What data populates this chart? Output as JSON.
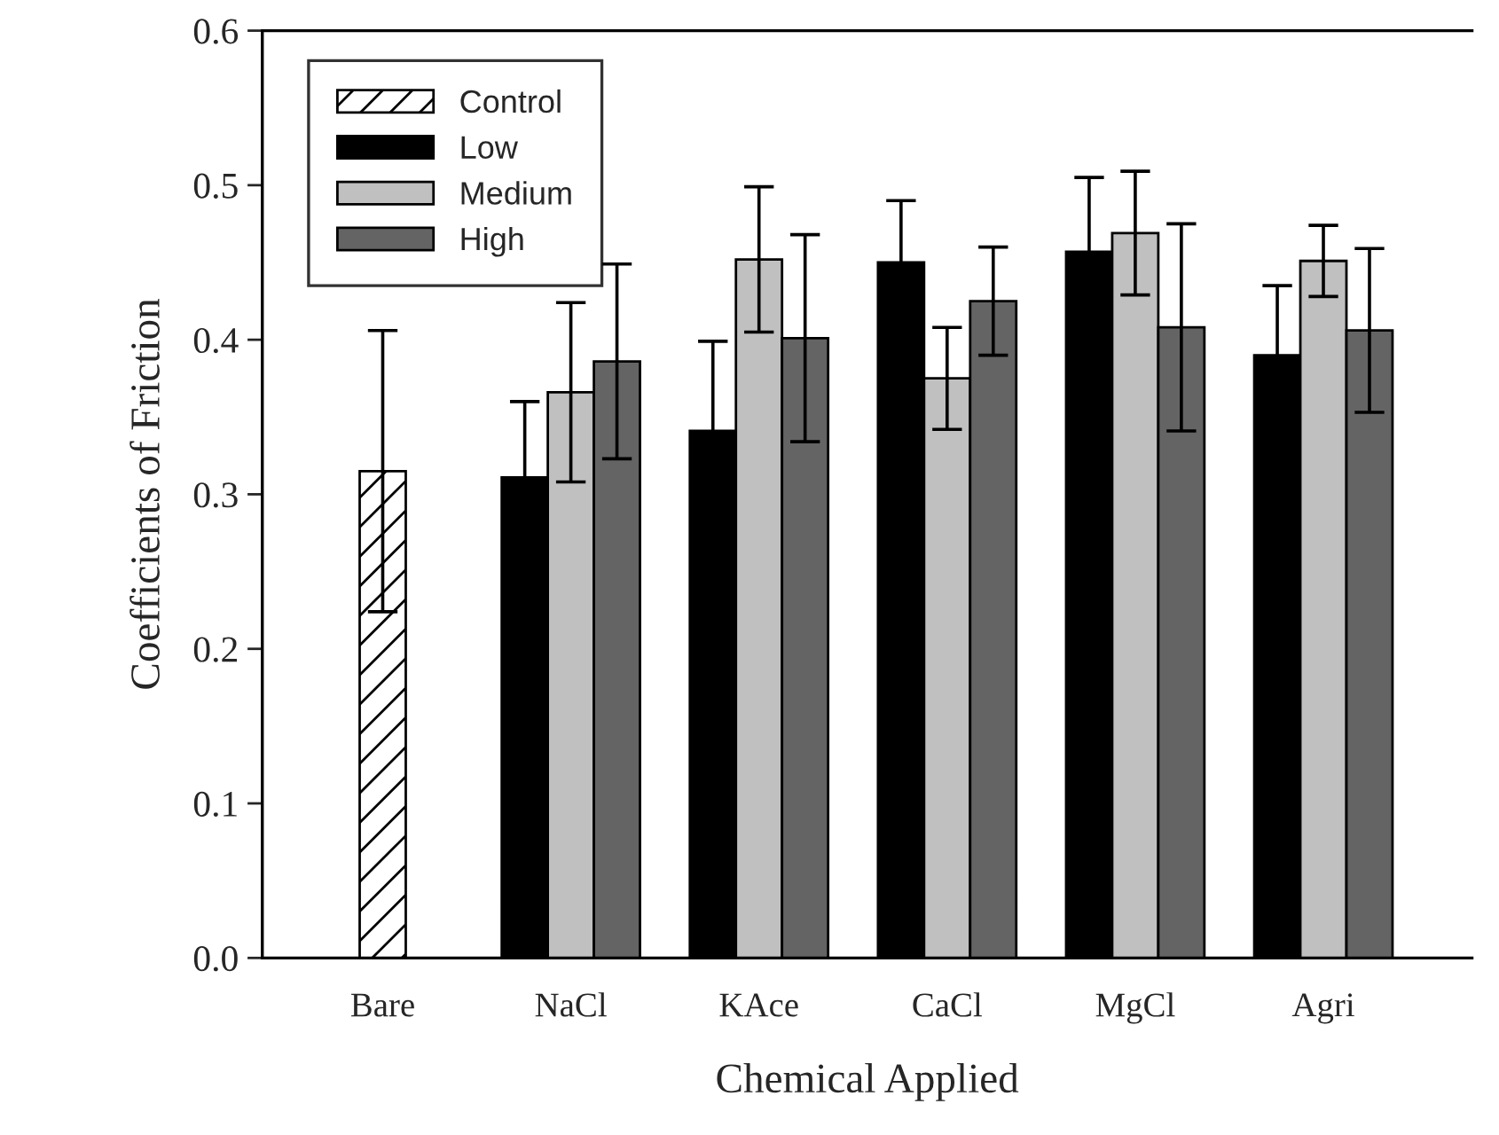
{
  "chart_data": {
    "type": "bar",
    "xlabel": "Chemical Applied",
    "ylabel": "Coefficients of Friction",
    "categories": [
      "Bare",
      "NaCl",
      "KAce",
      "CaCl",
      "MgCl",
      "Agri"
    ],
    "series": [
      {
        "name": "Control",
        "color": "#ffffff",
        "values": [
          0.315,
          null,
          null,
          null,
          null,
          null
        ],
        "errors": [
          0.091,
          null,
          null,
          null,
          null,
          null
        ]
      },
      {
        "name": "Low",
        "color": "#000000",
        "values": [
          null,
          0.311,
          0.341,
          0.45,
          0.457,
          0.39
        ],
        "errors": [
          null,
          0.049,
          0.058,
          0.04,
          0.048,
          0.045
        ]
      },
      {
        "name": "Medium",
        "color": "#c0c0c0",
        "values": [
          null,
          0.366,
          0.452,
          0.375,
          0.469,
          0.451
        ],
        "errors": [
          null,
          0.058,
          0.047,
          0.033,
          0.04,
          0.023
        ]
      },
      {
        "name": "High",
        "color": "#646464",
        "values": [
          null,
          0.386,
          0.401,
          0.425,
          0.408,
          0.406
        ],
        "errors": [
          null,
          0.063,
          0.067,
          0.035,
          0.067,
          0.053
        ]
      }
    ],
    "ylim": [
      0.0,
      0.6
    ],
    "yticks": [
      {
        "value": 0.0,
        "label": "0.0"
      },
      0.1,
      0.2,
      0.3,
      0.4,
      0.5,
      0.6
    ],
    "legend": "top left",
    "grid": false
  }
}
